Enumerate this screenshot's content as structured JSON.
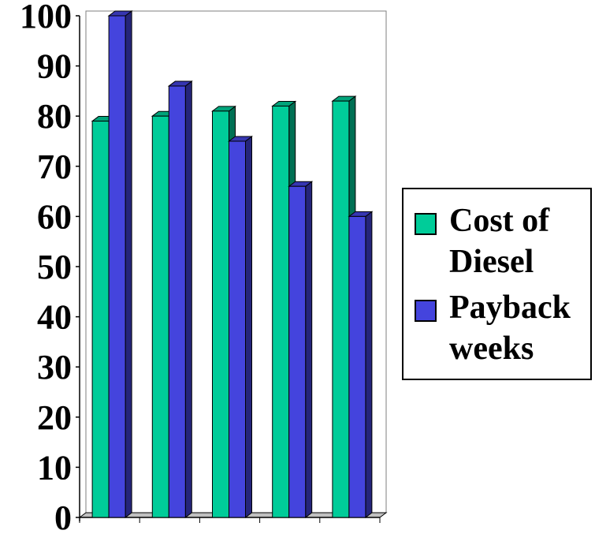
{
  "chart_data": {
    "type": "bar",
    "style": "3d-clustered",
    "categories": [
      "",
      "",
      "",
      "",
      ""
    ],
    "series": [
      {
        "name": "Cost of Diesel",
        "lines": [
          "Cost of",
          "Diesel"
        ],
        "color": "#00cc99",
        "values": [
          79,
          80,
          81,
          82,
          83
        ]
      },
      {
        "name": "Payback weeks",
        "lines": [
          "Payback",
          "weeks"
        ],
        "color": "#4444dd",
        "values": [
          100,
          86,
          75,
          66,
          60
        ]
      }
    ],
    "yticks": [
      "0",
      "10",
      "20",
      "30",
      "40",
      "50",
      "60",
      "70",
      "80",
      "90",
      "100"
    ],
    "ylim": [
      0,
      100
    ],
    "title": "",
    "xlabel": "",
    "ylabel": "",
    "grid": false,
    "legend_position": "right"
  }
}
